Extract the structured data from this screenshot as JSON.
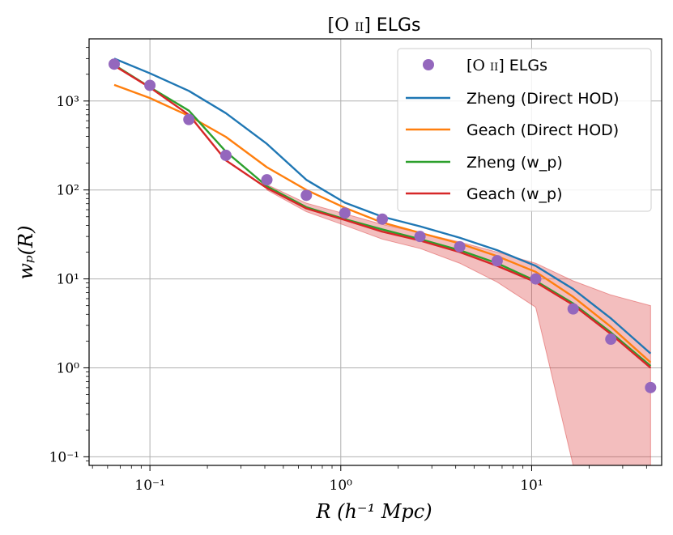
{
  "chart_data": {
    "type": "line",
    "title_main": "[O ",
    "title_ion": "II",
    "title_rest": "] ELGs",
    "xlabel": "R (h⁻¹ Mpc)",
    "ylabel": "wₚ(R)",
    "xscale": "log",
    "yscale": "log",
    "xlim": [
      0.048,
      48
    ],
    "ylim": [
      0.08,
      5000
    ],
    "grid": true,
    "legend_position": "top-right",
    "x_ticks": [
      {
        "value": 0.1,
        "label": "10⁻¹"
      },
      {
        "value": 1,
        "label": "10⁰"
      },
      {
        "value": 10,
        "label": "10¹"
      }
    ],
    "y_ticks": [
      {
        "value": 0.1,
        "label": "10⁻¹"
      },
      {
        "value": 1,
        "label": "10⁰"
      },
      {
        "value": 10,
        "label": "10¹"
      },
      {
        "value": 100,
        "label": "10²"
      },
      {
        "value": 1000,
        "label": "10³"
      }
    ],
    "points": {
      "name": "[O II] ELGs",
      "color": "#9467bd",
      "x": [
        0.065,
        0.1,
        0.16,
        0.25,
        0.41,
        0.66,
        1.05,
        1.65,
        2.6,
        4.2,
        6.6,
        10.5,
        16.5,
        26,
        42
      ],
      "y": [
        2600,
        1500,
        620,
        245,
        130,
        87,
        55,
        47,
        30,
        23,
        16,
        10,
        4.6,
        2.1,
        0.6
      ]
    },
    "series": [
      {
        "name": "Zheng (Direct HOD)",
        "color": "#1f77b4",
        "x": [
          0.065,
          0.1,
          0.16,
          0.25,
          0.41,
          0.66,
          1.05,
          1.65,
          2.6,
          4.2,
          6.6,
          10.5,
          16.5,
          26,
          42
        ],
        "y": [
          3000,
          2050,
          1300,
          730,
          330,
          130,
          72,
          50,
          39,
          29,
          21,
          14,
          7.7,
          3.6,
          1.45
        ]
      },
      {
        "name": "Geach (Direct HOD)",
        "color": "#ff7f0e",
        "x": [
          0.065,
          0.1,
          0.16,
          0.25,
          0.41,
          0.66,
          1.05,
          1.65,
          2.6,
          4.2,
          6.6,
          10.5,
          16.5,
          26,
          42
        ],
        "y": [
          1520,
          1080,
          680,
          395,
          180,
          100,
          63,
          43,
          33,
          25,
          18,
          12,
          6.3,
          2.9,
          1.15
        ]
      },
      {
        "name": "Zheng (w_p)",
        "color": "#2ca02c",
        "x": [
          0.065,
          0.1,
          0.16,
          0.25,
          0.41,
          0.66,
          1.05,
          1.65,
          2.6,
          4.2,
          6.6,
          10.5,
          16.5,
          26,
          42
        ],
        "y": [
          2550,
          1430,
          780,
          270,
          110,
          64,
          47,
          36,
          28,
          21,
          15,
          9.5,
          5.3,
          2.5,
          1.05
        ]
      },
      {
        "name": "Geach (w_p)",
        "color": "#d62728",
        "x": [
          0.065,
          0.1,
          0.16,
          0.25,
          0.41,
          0.66,
          1.05,
          1.65,
          2.6,
          4.2,
          6.6,
          10.5,
          16.5,
          26,
          42
        ],
        "y": [
          2500,
          1420,
          700,
          215,
          105,
          62,
          46,
          34,
          27,
          20,
          14,
          9.2,
          5.1,
          2.4,
          1.0
        ]
      }
    ],
    "band": {
      "name": "Geach (w_p) uncertainty",
      "color": "#d62728",
      "x": [
        0.41,
        0.66,
        1.05,
        1.65,
        2.6,
        4.2,
        6.6,
        10.5,
        16.5,
        26,
        42
      ],
      "lower": [
        100,
        57,
        40,
        28,
        22,
        15,
        9.2,
        4.8,
        0.08,
        0.08,
        0.08
      ],
      "upper": [
        115,
        71,
        54,
        41,
        33,
        26,
        20,
        15,
        9.5,
        6.6,
        5.0
      ]
    }
  }
}
